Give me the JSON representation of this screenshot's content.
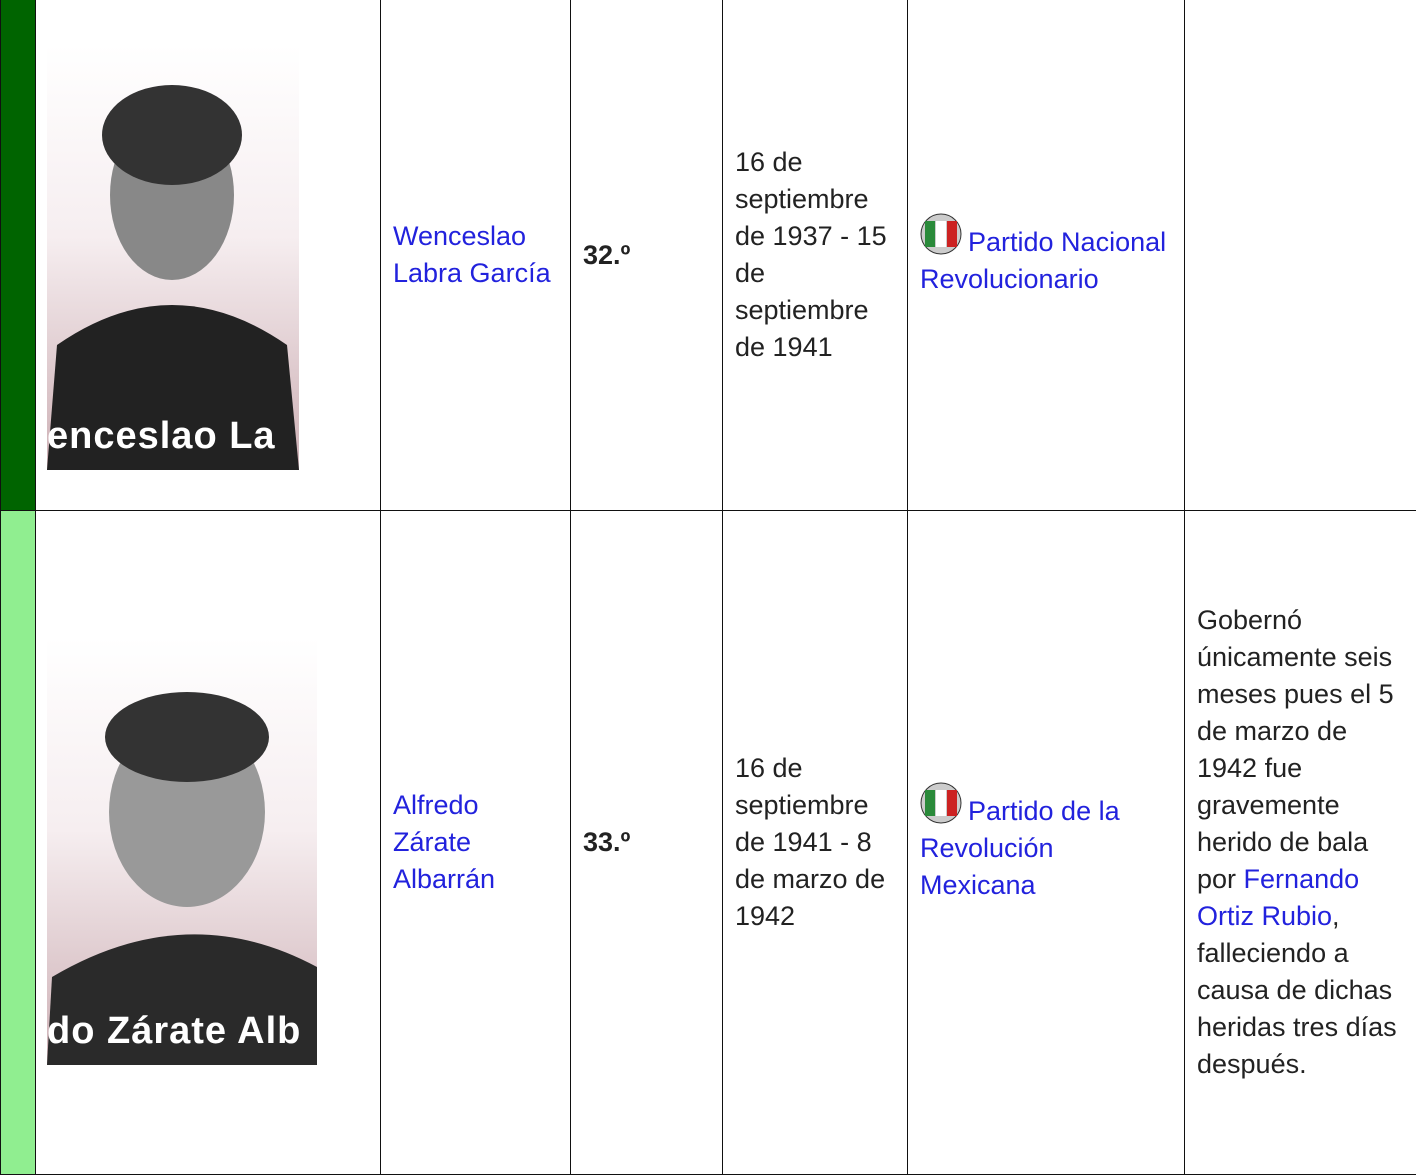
{
  "rows": [
    {
      "photo_caption": "enceslao La",
      "name": "Wenceslao Labra García",
      "number": "32.º",
      "term": "16 de septiembre de 1937 - 15 de septiembre de 1941",
      "party": "Partido Nacional Revolucionario"
    },
    {
      "photo_caption": "do Zárate Alb",
      "name": "Alfredo Zárate Albarrán",
      "number": "33.º",
      "term": "16 de septiembre de 1941 - 8 de marzo de 1942",
      "party": "Partido de la Revolución Mexicana",
      "notes": {
        "before": "Gobernó únicamente seis meses pues el 5 de marzo de 1942 fue gravemente herido de bala por",
        "link": "Fernando Ortiz Rubio",
        "after": ", falleciendo a causa de dichas heridas tres días después."
      }
    }
  ]
}
